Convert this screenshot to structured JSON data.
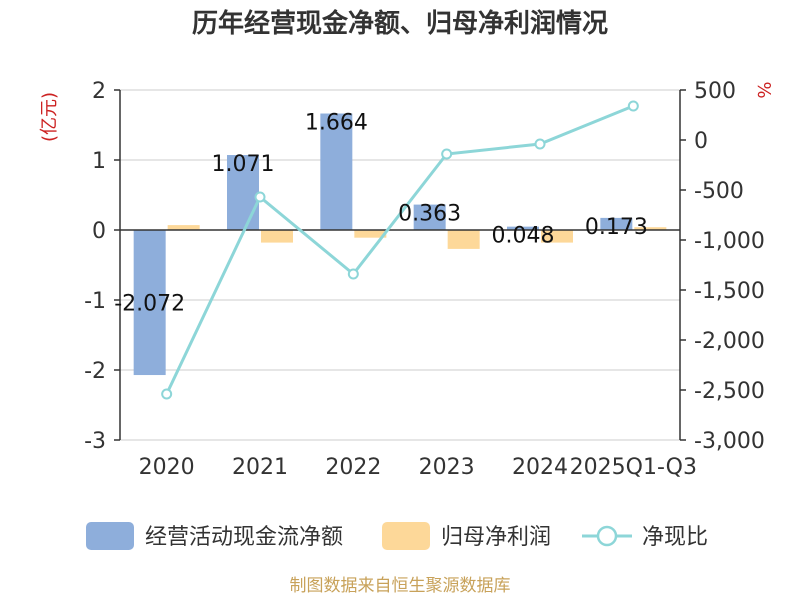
{
  "chart_data": {
    "type": "bar",
    "title": "历年经营现金净额、归母净利润情况",
    "categories": [
      "2020",
      "2021",
      "2022",
      "2023",
      "2024",
      "2025Q1-Q3"
    ],
    "series": [
      {
        "name": "经营活动现金流净额",
        "axis": "left",
        "type": "bar",
        "color": "#8eaedb",
        "values": [
          -2.072,
          1.071,
          1.664,
          0.363,
          0.048,
          0.173
        ],
        "labels": [
          "-2.072",
          "1.071",
          "1.664",
          "0.363",
          "0.048",
          "0.173"
        ]
      },
      {
        "name": "归母净利润",
        "axis": "left",
        "type": "bar",
        "color": "#fdd899",
        "values": [
          0.07,
          -0.18,
          -0.11,
          -0.27,
          -0.18,
          0.04
        ]
      },
      {
        "name": "净现比",
        "axis": "right",
        "type": "line",
        "color": "#8dd6d8",
        "values": [
          -2540,
          -570,
          -1340,
          -140,
          -40,
          340
        ]
      }
    ],
    "left_axis": {
      "unit": "(亿元)",
      "ylim": [
        -3,
        2
      ],
      "ticks": [
        -3,
        -2,
        -1,
        0,
        1,
        2
      ],
      "tick_labels": [
        "-3",
        "-2",
        "-1",
        "0",
        "1",
        "2"
      ]
    },
    "right_axis": {
      "unit": "%",
      "ylim": [
        -3000,
        500
      ],
      "ticks": [
        -3000,
        -2500,
        -2000,
        -1500,
        -1000,
        -500,
        0,
        500
      ],
      "tick_labels": [
        "-3,000",
        "-2,500",
        "-2,000",
        "-1,500",
        "-1,000",
        "-500",
        "0",
        "500"
      ]
    },
    "legend": [
      "经营活动现金流净额",
      "归母净利润",
      "净现比"
    ],
    "legend_position": "bottom",
    "grid": true,
    "source": "制图数据来自恒生聚源数据库"
  },
  "colors": {
    "unit_label": "#cc2222",
    "source": "#c8a25a",
    "axis": "#333333",
    "grid": "#cccccc"
  }
}
